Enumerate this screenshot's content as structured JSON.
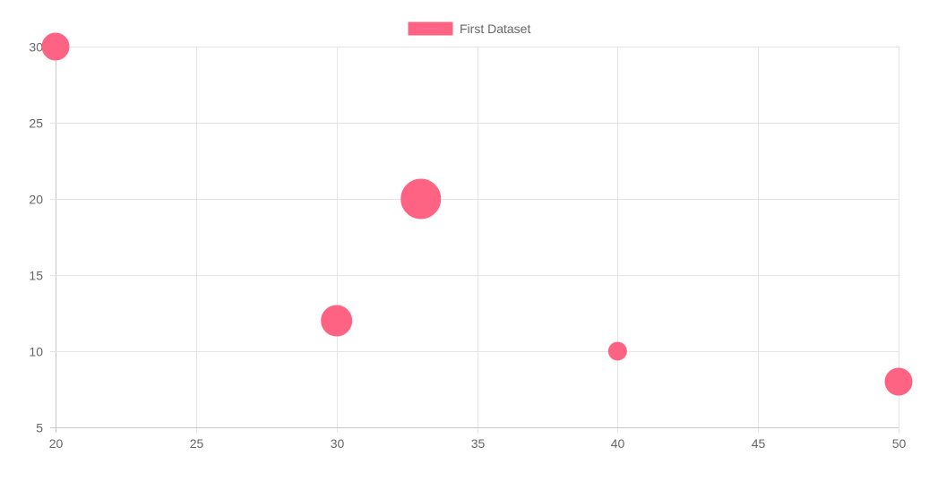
{
  "chart_data": {
    "type": "scatter",
    "subtype": "bubble",
    "title": "",
    "xlabel": "",
    "ylabel": "",
    "xlim": [
      20,
      50
    ],
    "ylim": [
      5,
      30
    ],
    "x_ticks": [
      20,
      25,
      30,
      35,
      40,
      45,
      50
    ],
    "y_ticks": [
      5,
      10,
      15,
      20,
      25,
      30
    ],
    "grid": true,
    "legend": {
      "position": "top-center",
      "entries": [
        "First Dataset"
      ]
    },
    "series": [
      {
        "name": "First Dataset",
        "color": "#ff6384",
        "points": [
          {
            "x": 20,
            "y": 30,
            "r": 15
          },
          {
            "x": 33,
            "y": 20,
            "r": 22
          },
          {
            "x": 30,
            "y": 12,
            "r": 17
          },
          {
            "x": 40,
            "y": 10,
            "r": 10
          },
          {
            "x": 50,
            "y": 8,
            "r": 15
          }
        ]
      }
    ]
  }
}
